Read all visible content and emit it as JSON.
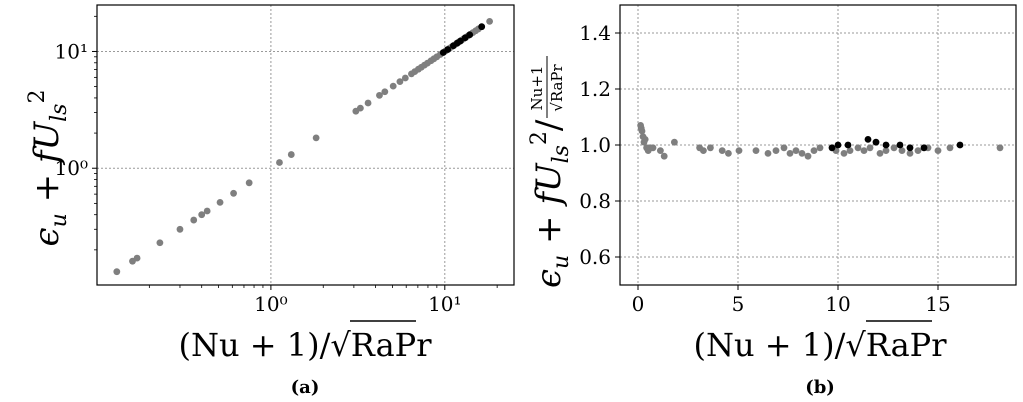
{
  "chart_data": [
    {
      "type": "scatter",
      "panel": "(a)",
      "xscale": "log",
      "yscale": "log",
      "xlim": [
        0.1,
        25
      ],
      "ylim": [
        0.1,
        25
      ],
      "grid": true,
      "xlabel": "(Nu + 1)/√RaPr",
      "ylabel": "ε_u + f U_ls^2",
      "xticks": [
        {
          "value": 1,
          "label": "10⁰"
        },
        {
          "value": 10,
          "label": "10¹"
        }
      ],
      "yticks": [
        {
          "value": 1,
          "label": "10⁰"
        },
        {
          "value": 10,
          "label": "10¹"
        }
      ],
      "series": [
        {
          "color": "#7f7f7f",
          "x": [
            0.13,
            0.16,
            0.17,
            0.23,
            0.3,
            0.36,
            0.4,
            0.43,
            0.51,
            0.61,
            0.75,
            1.12,
            1.31,
            1.82,
            3.08,
            3.27,
            3.62,
            4.21,
            4.52,
            5.05,
            5.52,
            5.93,
            6.43,
            6.72,
            7.05,
            7.33,
            7.64,
            7.95,
            8.33,
            8.65,
            9.0,
            9.42,
            10.1,
            10.35,
            10.7,
            11.0,
            11.3,
            11.65,
            12.05,
            12.4,
            12.8,
            13.2,
            13.6,
            14.0,
            14.5,
            15.05,
            15.6,
            18.1
          ],
          "y": [
            0.13,
            0.16,
            0.17,
            0.23,
            0.3,
            0.36,
            0.4,
            0.43,
            0.51,
            0.61,
            0.75,
            1.12,
            1.31,
            1.82,
            3.08,
            3.27,
            3.62,
            4.21,
            4.52,
            5.05,
            5.52,
            5.93,
            6.43,
            6.72,
            7.05,
            7.33,
            7.64,
            7.95,
            8.33,
            8.65,
            9.0,
            9.42,
            10.1,
            10.35,
            10.7,
            11.0,
            11.3,
            11.65,
            12.05,
            12.4,
            12.8,
            13.2,
            13.6,
            14.0,
            14.5,
            15.05,
            15.6,
            18.1
          ]
        },
        {
          "color": "#000000",
          "x": [
            9.8,
            10.4,
            11.2,
            11.8,
            12.3,
            13.1,
            13.9,
            16.3
          ],
          "y": [
            9.8,
            10.4,
            11.2,
            11.8,
            12.3,
            13.1,
            13.9,
            16.3
          ]
        }
      ]
    },
    {
      "type": "scatter",
      "panel": "(b)",
      "xlim": [
        -0.9,
        18.9
      ],
      "ylim": [
        0.5,
        1.5
      ],
      "grid": true,
      "xlabel": "(Nu + 1)/√RaPr",
      "ylabel": "ε_u + f U_ls^2 / ((Nu+1)/√RaPr)",
      "xticks": [
        {
          "value": 0,
          "label": "0"
        },
        {
          "value": 5,
          "label": "5"
        },
        {
          "value": 10,
          "label": "10"
        },
        {
          "value": 15,
          "label": "15"
        }
      ],
      "yticks": [
        {
          "value": 0.6,
          "label": "0.6"
        },
        {
          "value": 0.8,
          "label": "0.8"
        },
        {
          "value": 1.0,
          "label": "1.0"
        },
        {
          "value": 1.2,
          "label": "1.2"
        },
        {
          "value": 1.4,
          "label": "1.4"
        }
      ],
      "series": [
        {
          "color": "#7f7f7f",
          "x": [
            0.13,
            0.16,
            0.2,
            0.25,
            0.3,
            0.36,
            0.43,
            0.51,
            0.61,
            0.75,
            1.12,
            1.31,
            1.82,
            3.08,
            3.27,
            3.62,
            4.21,
            4.52,
            5.05,
            5.9,
            6.5,
            6.9,
            7.3,
            7.6,
            7.9,
            8.2,
            8.5,
            8.8,
            9.1,
            9.9,
            10.3,
            10.6,
            11.0,
            11.3,
            11.6,
            12.1,
            12.4,
            12.8,
            13.2,
            13.6,
            14.0,
            14.5,
            15.0,
            15.6,
            18.1
          ],
          "y": [
            1.07,
            1.06,
            1.05,
            1.03,
            1.01,
            1.02,
            0.99,
            0.98,
            0.99,
            0.99,
            0.98,
            0.96,
            1.01,
            0.99,
            0.98,
            0.99,
            0.98,
            0.97,
            0.98,
            0.98,
            0.97,
            0.98,
            0.99,
            0.97,
            0.98,
            0.97,
            0.96,
            0.98,
            0.99,
            0.98,
            0.97,
            0.98,
            0.99,
            0.98,
            0.99,
            0.97,
            0.98,
            0.99,
            0.98,
            0.97,
            0.98,
            0.99,
            0.98,
            0.99,
            0.99
          ]
        },
        {
          "color": "#000000",
          "x": [
            9.7,
            10.0,
            10.5,
            11.5,
            11.9,
            12.4,
            13.1,
            13.6,
            14.3,
            16.1
          ],
          "y": [
            0.99,
            1.0,
            1.0,
            1.02,
            1.01,
            1.0,
            1.0,
            0.99,
            0.99,
            1.0
          ]
        }
      ]
    }
  ],
  "captions": {
    "a": "(a)",
    "b": "(b)"
  }
}
